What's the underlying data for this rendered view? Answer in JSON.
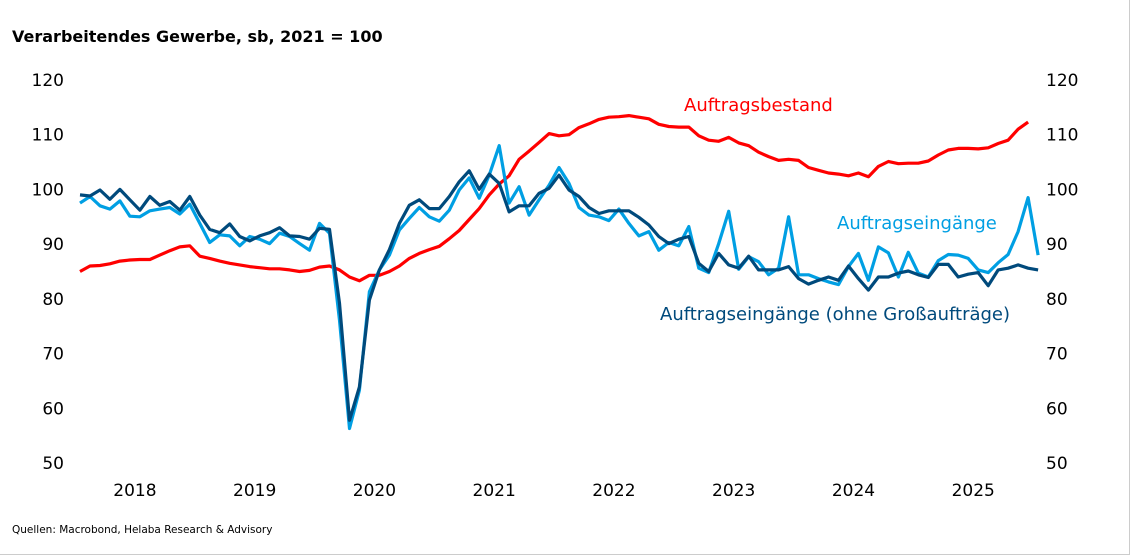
{
  "chart_data": {
    "type": "line",
    "title": "Verarbeitendes Gewerbe, sb, 2021 = 100",
    "source": "Quellen: Macrobond, Helaba Research & Advisory",
    "x_start": "2018-01",
    "frequency": "monthly",
    "xtick_labels": [
      "2018",
      "2019",
      "2020",
      "2021",
      "2022",
      "2023",
      "2024",
      "2025"
    ],
    "yticks": [
      50,
      60,
      70,
      80,
      90,
      100,
      110,
      120
    ],
    "ylim": [
      50,
      120
    ],
    "grid": false,
    "series": [
      {
        "name": "Auftragsbestand",
        "color": "#ff0000",
        "values": [
          85,
          86,
          86.1,
          86.4,
          86.9,
          87.1,
          87.2,
          87.2,
          88,
          88.8,
          89.5,
          89.7,
          87.8,
          87.4,
          86.9,
          86.5,
          86.2,
          85.9,
          85.7,
          85.5,
          85.5,
          85.3,
          85,
          85.2,
          85.8,
          86,
          85.3,
          84,
          83.3,
          84.3,
          84.3,
          85,
          86,
          87.4,
          88.3,
          89,
          89.6,
          91,
          92.5,
          94.5,
          96.5,
          99,
          101,
          102.5,
          105.5,
          107,
          108.6,
          110.2,
          109.8,
          110,
          111.3,
          112,
          112.8,
          113.2,
          113.3,
          113.5,
          113.2,
          112.9,
          111.9,
          111.5,
          111.4,
          111.4,
          109.8,
          109,
          108.8,
          109.5,
          108.5,
          108,
          106.8,
          106,
          105.3,
          105.5,
          105.3,
          104,
          103.5,
          103,
          102.8,
          102.5,
          103,
          102.3,
          104.2,
          105.1,
          104.7,
          104.8,
          104.8,
          105.2,
          106.3,
          107.2,
          107.5,
          107.5,
          107.4,
          107.6,
          108.4,
          109,
          111,
          112.3
        ]
      },
      {
        "name": "Auftragseingänge",
        "color": "#009fe3",
        "values": [
          97.5,
          98.7,
          97,
          96.4,
          97.9,
          95.1,
          95,
          96.1,
          96.4,
          96.7,
          95.5,
          97.3,
          93.8,
          90.3,
          91.7,
          91.5,
          89.7,
          91.4,
          90.9,
          90.1,
          92,
          91.4,
          90.1,
          88.9,
          93.8,
          92,
          76.1,
          56.3,
          63.3,
          81.3,
          85.3,
          88,
          92.6,
          94.7,
          96.7,
          95,
          94.2,
          96.2,
          99.9,
          102.1,
          98.4,
          102.6,
          108,
          97.5,
          100.5,
          95.3,
          98.1,
          100.8,
          104,
          101.1,
          96.7,
          95.3,
          95,
          94.3,
          96.4,
          93.8,
          91.5,
          92.3,
          88.9,
          90.3,
          89.7,
          93.2,
          85.6,
          84.8,
          90.1,
          96,
          85.4,
          87.7,
          86.8,
          84.4,
          85.6,
          95,
          84.4,
          84.4,
          83.7,
          83.1,
          82.6,
          85.9,
          88.3,
          83.4,
          89.5,
          88.4,
          84,
          88.5,
          84.7,
          84,
          87,
          88.1,
          88,
          87.4,
          85.3,
          84.8,
          86.6,
          88.1,
          92.3,
          98.5,
          88
        ]
      },
      {
        "name": "Auftragseingänge (ohne Großaufträge)",
        "color": "#004a7c",
        "values": [
          99,
          98.8,
          99.9,
          98.2,
          100,
          98.1,
          96.2,
          98.7,
          97.1,
          97.8,
          96.2,
          98.7,
          95.3,
          92.7,
          92.1,
          93.7,
          91.4,
          90.6,
          91.5,
          92.1,
          93,
          91.5,
          91.4,
          90.9,
          92.9,
          92.7,
          79.2,
          57.8,
          63.9,
          79.8,
          85.3,
          89,
          93.8,
          97.1,
          98.1,
          96.5,
          96.5,
          98.7,
          101.4,
          103.4,
          100,
          102.8,
          101.1,
          95.9,
          97,
          97,
          99.3,
          100.2,
          102.6,
          99.9,
          98.7,
          96.7,
          95.6,
          96.1,
          96.1,
          96.1,
          94.9,
          93.5,
          91.4,
          90.1,
          90.9,
          91.4,
          86.5,
          85,
          88.3,
          86.2,
          85.6,
          87.8,
          85.3,
          85.3,
          85.3,
          85.9,
          83.7,
          82.7,
          83.4,
          84,
          83.4,
          86,
          83.7,
          81.6,
          84,
          84,
          84.7,
          85.1,
          84.4,
          83.9,
          86.3,
          86.3,
          84,
          84.5,
          84.8,
          82.4,
          85.3,
          85.6,
          86.2,
          85.6,
          85.3
        ]
      }
    ]
  }
}
